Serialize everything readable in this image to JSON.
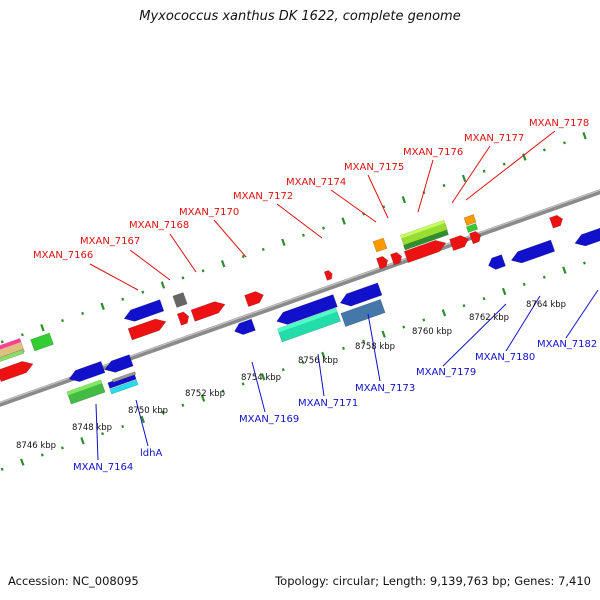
{
  "title": "Myxococcus xanthus DK 1622, complete genome",
  "footer": {
    "accession": "Accession: NC_008095",
    "summary": "Topology: circular; Length: 9,139,763 bp; Genes: 7,410"
  },
  "colors": {
    "backbone": "#8a8a8a",
    "tick": "#2e8b2e",
    "forward_label": "#dd1111",
    "reverse_label": "#1111cc",
    "red_gene": "#ee1111",
    "blue_gene": "#1111cc"
  },
  "scale_ticks": [
    "8746 kbp",
    "8748 kbp",
    "8750 kbp",
    "8752 kbp",
    "8754 kbp",
    "8756 kbp",
    "8758 kbp",
    "8760 kbp",
    "8762 kbp",
    "8764 kbp"
  ],
  "forward_labels": [
    "MXAN_7166",
    "MXAN_7167",
    "MXAN_7168",
    "MXAN_7170",
    "MXAN_7172",
    "MXAN_7174",
    "MXAN_7175",
    "MXAN_7176",
    "MXAN_7177",
    "MXAN_7178"
  ],
  "reverse_labels": [
    "MXAN_7164",
    "ldhA",
    "MXAN_7169",
    "MXAN_7171",
    "MXAN_7173",
    "MXAN_7179",
    "MXAN_7180",
    "MXAN_7182"
  ]
}
